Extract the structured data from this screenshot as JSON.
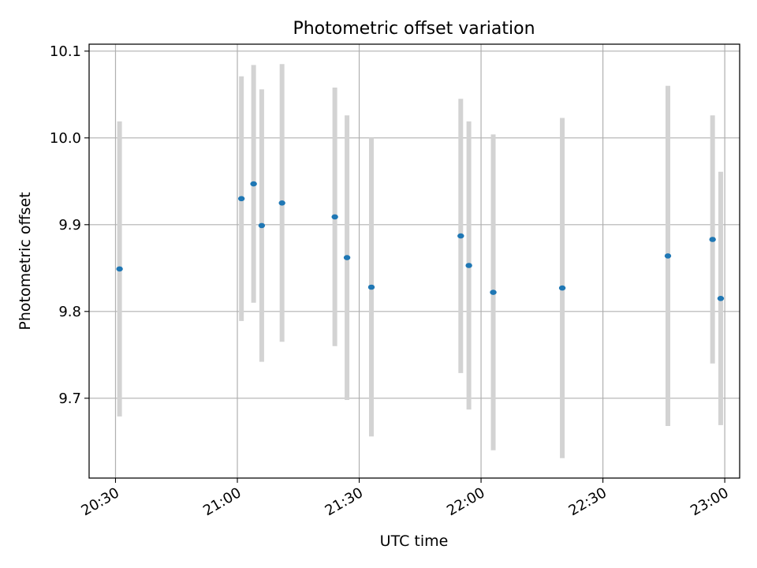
{
  "chart_data": {
    "type": "scatter",
    "title": "Photometric offset variation",
    "xlabel": "UTC time",
    "ylabel": "Photometric offset",
    "xlim": [
      "20:23:30",
      "23:03:40"
    ],
    "ylim": [
      9.608,
      10.108
    ],
    "x_ticks": [
      "20:30",
      "21:00",
      "21:30",
      "22:00",
      "22:30",
      "23:00"
    ],
    "y_ticks": [
      "9.7",
      "9.8",
      "9.9",
      "10.0",
      "10.1"
    ],
    "grid": true,
    "points": [
      {
        "x": "20:31",
        "y": 9.849,
        "err": 0.17
      },
      {
        "x": "21:01",
        "y": 9.93,
        "err": 0.141
      },
      {
        "x": "21:04",
        "y": 9.947,
        "err": 0.137
      },
      {
        "x": "21:06",
        "y": 9.899,
        "err": 0.157
      },
      {
        "x": "21:11",
        "y": 9.925,
        "err": 0.16
      },
      {
        "x": "21:24",
        "y": 9.909,
        "err": 0.149
      },
      {
        "x": "21:27",
        "y": 9.862,
        "err": 0.164
      },
      {
        "x": "21:33",
        "y": 9.828,
        "err": 0.172
      },
      {
        "x": "21:55",
        "y": 9.887,
        "err": 0.158
      },
      {
        "x": "21:57",
        "y": 9.853,
        "err": 0.166
      },
      {
        "x": "22:03",
        "y": 9.822,
        "err": 0.182
      },
      {
        "x": "22:20",
        "y": 9.827,
        "err": 0.196
      },
      {
        "x": "22:46",
        "y": 9.864,
        "err": 0.196
      },
      {
        "x": "22:57",
        "y": 9.883,
        "err": 0.143
      },
      {
        "x": "22:59",
        "y": 9.815,
        "err": 0.146
      }
    ],
    "marker_color": "#1f77b4",
    "errorbar_color": "#d3d3d3",
    "grid_color": "#b0b0b0"
  }
}
